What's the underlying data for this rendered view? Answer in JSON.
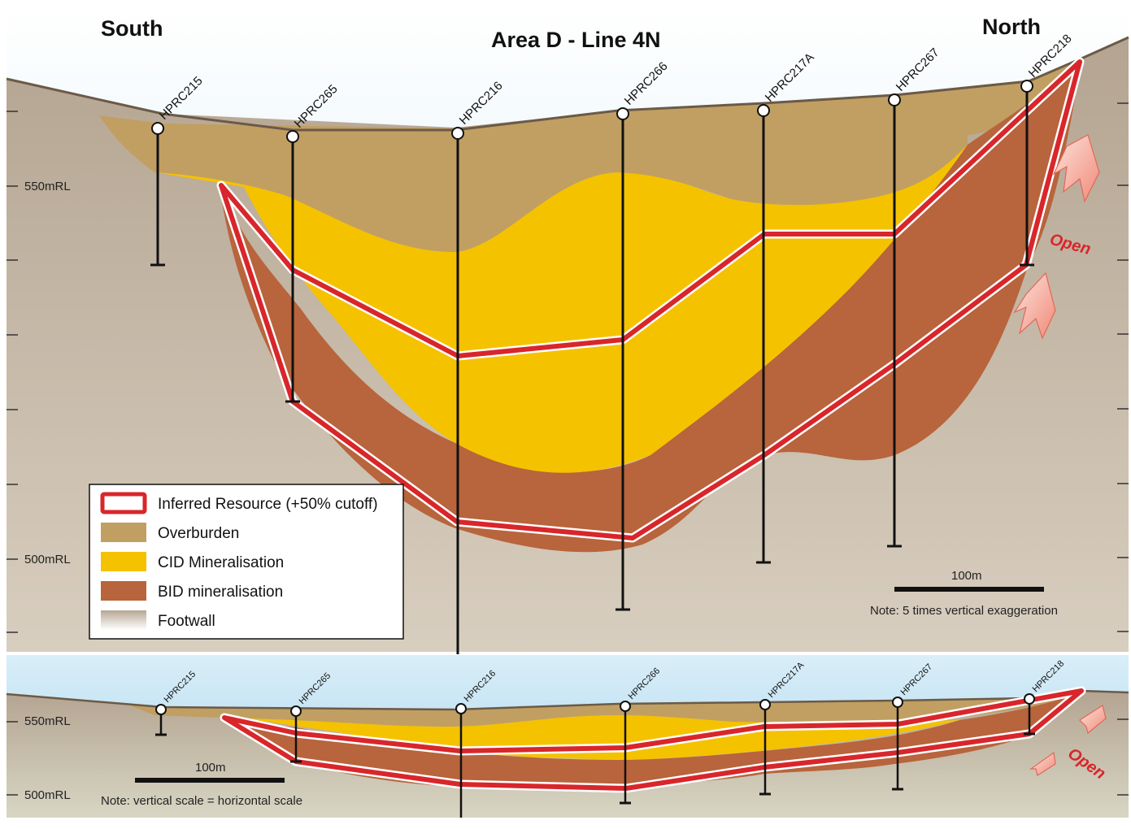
{
  "top_section": {
    "left_label": "South",
    "title": "Area D - Line 4N",
    "right_label": "North",
    "rl_labels": [
      "550mRL",
      "500mRL"
    ],
    "scale_label": "100m",
    "note": "Note: 5 times vertical exaggeration",
    "open_label": "Open"
  },
  "bottom_section": {
    "rl_labels": [
      "550mRL",
      "500mRL"
    ],
    "scale_label": "100m",
    "note": "Note: vertical scale = horizontal scale",
    "open_label": "Open"
  },
  "drill_holes": [
    "HPRC215",
    "HPRC265",
    "HPRC216",
    "HPRC266",
    "HPRC217A",
    "HPRC267",
    "HPRC218"
  ],
  "legend": {
    "items": [
      {
        "label": "Inferred Resource (+50% cutoff)",
        "swatch": "outline",
        "color": "#d8262b"
      },
      {
        "label": "Overburden",
        "swatch": "fill",
        "color": "#c19f62"
      },
      {
        "label": "CID Mineralisation",
        "swatch": "fill",
        "color": "#f5c200"
      },
      {
        "label": "BID mineralisation",
        "swatch": "fill",
        "color": "#b8643c"
      },
      {
        "label": "Footwall",
        "swatch": "gradient",
        "color": "#cfc3b3"
      }
    ]
  },
  "colors": {
    "sky": "#a8d4ec",
    "footwall": "#bdae9c",
    "overburden": "#c19f62",
    "cid": "#f5c200",
    "bid": "#b8643c",
    "resource_outline": "#d8262b"
  }
}
